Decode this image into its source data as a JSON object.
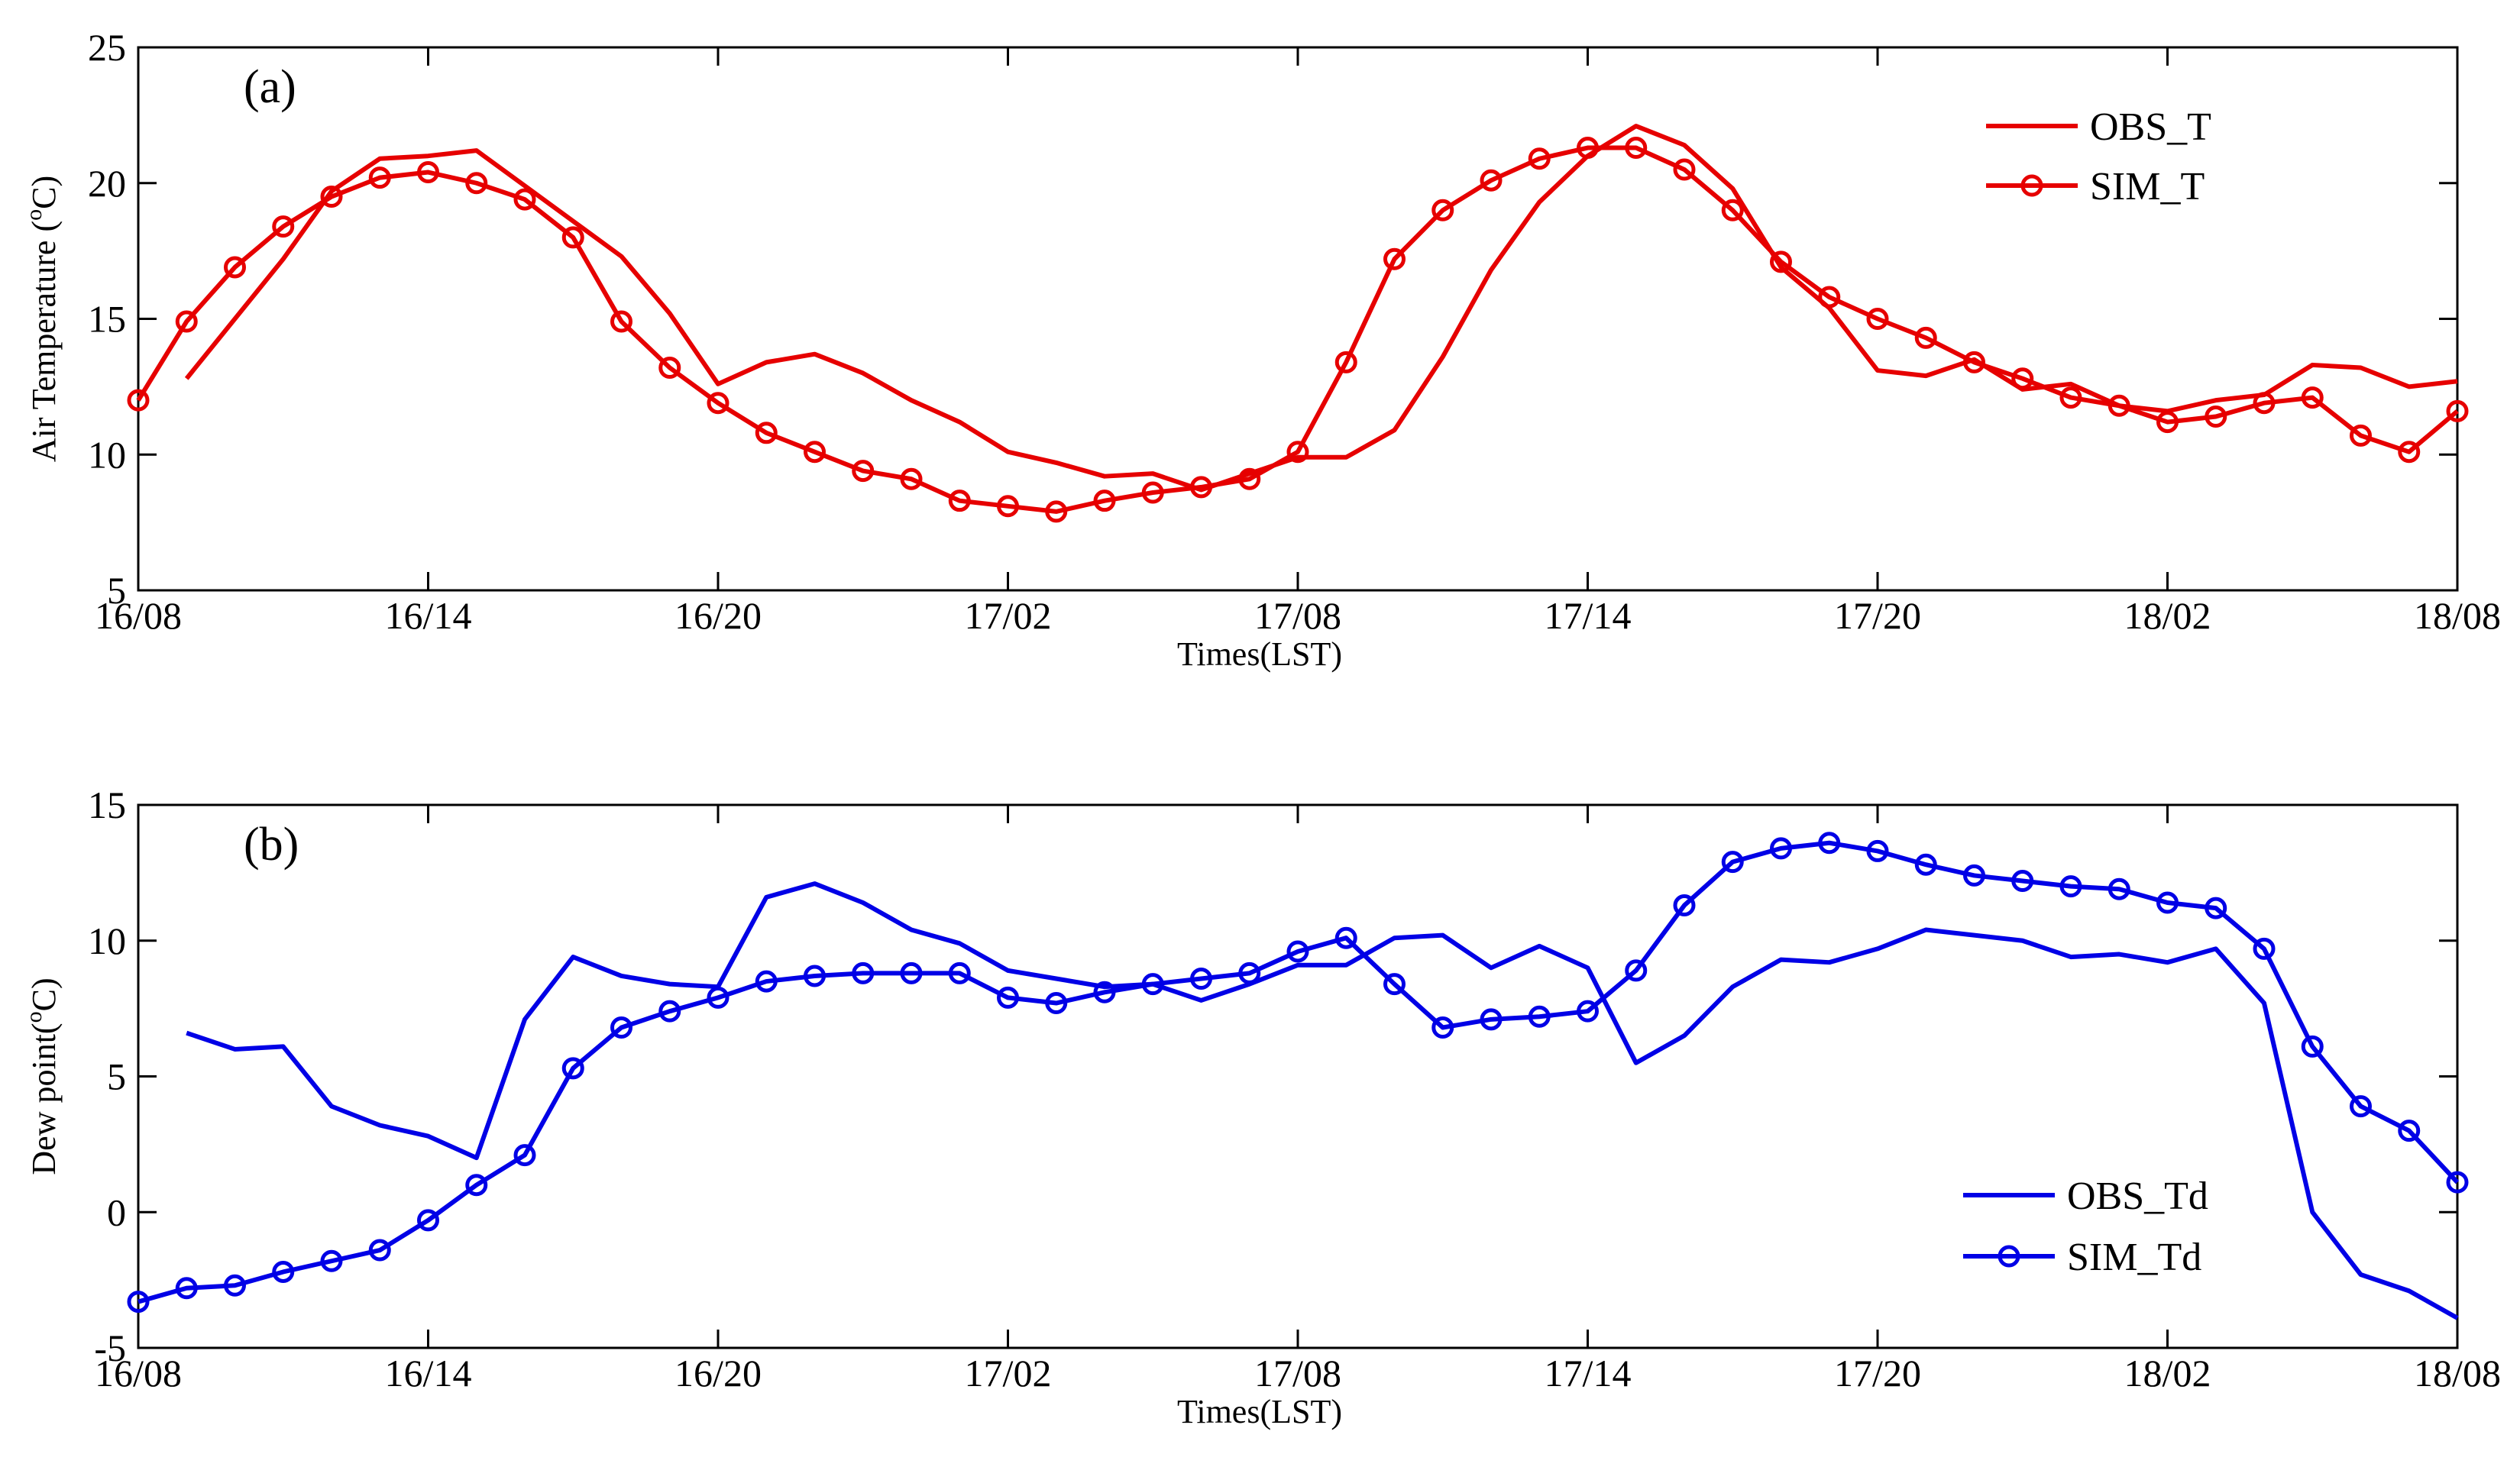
{
  "chart_data": [
    {
      "type": "line",
      "panel_label": "(a)",
      "xlabel": "Times(LST)",
      "ylabel": "Air Temperature (°C)",
      "ylabel_parts": {
        "pre": "Air Temperature (",
        "sup": "o",
        "post": "C)"
      },
      "ylim": [
        5,
        25
      ],
      "yticks": [
        "5",
        "10",
        "15",
        "20",
        "25"
      ],
      "xlim": [
        0,
        48
      ],
      "xticks": [
        "16/08",
        "16/14",
        "16/20",
        "17/02",
        "17/08",
        "17/14",
        "17/20",
        "18/02",
        "18/08"
      ],
      "legend_position": "top-right",
      "series": [
        {
          "name": "OBS_T",
          "color": "#e60000",
          "marker": "none",
          "x": [
            1,
            2,
            3,
            4,
            5,
            6,
            7,
            8,
            9,
            10,
            11,
            12,
            13,
            14,
            15,
            16,
            17,
            18,
            19,
            20,
            21,
            22,
            23,
            24,
            25,
            26,
            27,
            28,
            29,
            30,
            31,
            32,
            33,
            34,
            35,
            36,
            37,
            38,
            39,
            40,
            41,
            42,
            43,
            44,
            45,
            46,
            47,
            48
          ],
          "values": [
            12.8,
            15.0,
            17.2,
            19.7,
            20.9,
            21.0,
            21.2,
            19.9,
            18.6,
            17.3,
            15.2,
            12.6,
            13.4,
            13.7,
            13.0,
            12.0,
            11.2,
            10.1,
            9.7,
            9.2,
            9.3,
            8.7,
            9.3,
            9.9,
            9.9,
            10.9,
            13.6,
            16.8,
            19.3,
            21.0,
            22.1,
            21.4,
            19.8,
            16.9,
            15.4,
            13.1,
            12.9,
            13.5,
            12.4,
            12.6,
            11.8,
            11.6,
            12.0,
            12.2,
            13.3,
            13.2,
            12.5,
            12.7
          ]
        },
        {
          "name": "SIM_T",
          "color": "#e60000",
          "marker": "circle",
          "x": [
            0,
            1,
            2,
            3,
            4,
            5,
            6,
            7,
            8,
            9,
            10,
            11,
            12,
            13,
            14,
            15,
            16,
            17,
            18,
            19,
            20,
            21,
            22,
            23,
            24,
            25,
            26,
            27,
            28,
            29,
            30,
            31,
            32,
            33,
            34,
            35,
            36,
            37,
            38,
            39,
            40,
            41,
            42,
            43,
            44,
            45,
            46,
            47,
            48
          ],
          "values": [
            12.0,
            14.9,
            16.9,
            18.4,
            19.5,
            20.2,
            20.4,
            20.0,
            19.4,
            18.0,
            14.9,
            13.2,
            11.9,
            10.8,
            10.1,
            9.4,
            9.1,
            8.3,
            8.1,
            7.9,
            8.3,
            8.6,
            8.8,
            9.1,
            10.1,
            13.4,
            17.2,
            19.0,
            20.1,
            20.9,
            21.3,
            21.3,
            20.5,
            19.0,
            17.1,
            15.8,
            15.0,
            14.3,
            13.4,
            12.8,
            12.1,
            11.8,
            11.2,
            11.4,
            11.9,
            12.1,
            10.7,
            10.1,
            11.6
          ]
        }
      ]
    },
    {
      "type": "line",
      "panel_label": "(b)",
      "xlabel": "Times(LST)",
      "ylabel": "Dew point(°C)",
      "ylabel_parts": {
        "pre": "Dew point(",
        "sup": "o",
        "post": "C)"
      },
      "ylim": [
        -5,
        15
      ],
      "yticks": [
        "-5",
        "0",
        "5",
        "10",
        "15"
      ],
      "xlim": [
        0,
        48
      ],
      "xticks": [
        "16/08",
        "16/14",
        "16/20",
        "17/02",
        "17/08",
        "17/14",
        "17/20",
        "18/02",
        "18/08"
      ],
      "legend_position": "bottom-right",
      "series": [
        {
          "name": "OBS_Td",
          "color": "#0000e6",
          "marker": "none",
          "x": [
            1,
            2,
            3,
            4,
            5,
            6,
            7,
            8,
            9,
            10,
            11,
            12,
            13,
            14,
            15,
            16,
            17,
            18,
            19,
            20,
            21,
            22,
            23,
            24,
            25,
            26,
            27,
            28,
            29,
            30,
            31,
            32,
            33,
            34,
            35,
            36,
            37,
            38,
            39,
            40,
            41,
            42,
            43,
            44,
            45,
            46,
            47,
            48
          ],
          "values": [
            6.6,
            6.0,
            6.1,
            3.9,
            3.2,
            2.8,
            2.0,
            7.1,
            9.4,
            8.7,
            8.4,
            8.3,
            11.6,
            12.1,
            11.4,
            10.4,
            9.9,
            8.9,
            8.6,
            8.3,
            8.4,
            7.8,
            8.4,
            9.1,
            9.1,
            10.1,
            10.2,
            9.0,
            9.8,
            9.0,
            5.5,
            6.5,
            8.3,
            9.3,
            9.2,
            9.7,
            10.4,
            10.2,
            10.0,
            9.4,
            9.5,
            9.2,
            9.7,
            7.7,
            0.0,
            -2.3,
            -2.9,
            -3.9
          ]
        },
        {
          "name": "SIM_Td",
          "color": "#0000e6",
          "marker": "circle",
          "x": [
            0,
            1,
            2,
            3,
            4,
            5,
            6,
            7,
            8,
            9,
            10,
            11,
            12,
            13,
            14,
            15,
            16,
            17,
            18,
            19,
            20,
            21,
            22,
            23,
            24,
            25,
            26,
            27,
            28,
            29,
            30,
            31,
            32,
            33,
            34,
            35,
            36,
            37,
            38,
            39,
            40,
            41,
            42,
            43,
            44,
            45,
            46,
            47,
            48
          ],
          "values": [
            -3.3,
            -2.8,
            -2.7,
            -2.2,
            -1.8,
            -1.4,
            -0.3,
            1.0,
            2.1,
            5.3,
            6.8,
            7.4,
            7.9,
            8.5,
            8.7,
            8.8,
            8.8,
            8.8,
            7.9,
            7.7,
            8.1,
            8.4,
            8.6,
            8.8,
            9.6,
            10.1,
            8.4,
            6.8,
            7.1,
            7.2,
            7.4,
            8.9,
            11.3,
            12.9,
            13.4,
            13.6,
            13.3,
            12.8,
            12.4,
            12.2,
            12.0,
            11.9,
            11.4,
            11.2,
            9.7,
            6.1,
            3.9,
            3.0,
            1.1
          ]
        }
      ]
    }
  ]
}
